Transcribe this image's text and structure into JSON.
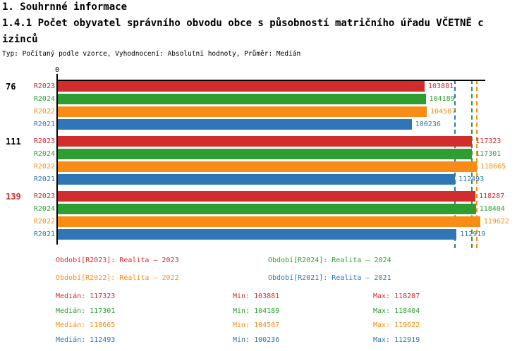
{
  "header": {
    "title": "1. Souhrnné informace",
    "subtitle_line1": "1.4.1 Počet obyvatel správního obvodu obce s působností matričního úřadu VČETNĚ c",
    "subtitle_line2": "izinců",
    "meta": "Typ: Počítaný podle vzorce, Vyhodnocení: Absolutní hodnoty, Průměr: Medián"
  },
  "chart_data": {
    "type": "bar",
    "orientation": "horizontal",
    "value_axis": {
      "origin_label": "0",
      "min": 0,
      "max": 121000,
      "grid": false
    },
    "groups": [
      {
        "label": "76",
        "label_color": "#000000"
      },
      {
        "label": "111",
        "label_color": "#000000"
      },
      {
        "label": "139",
        "label_color": "#d22d2d"
      }
    ],
    "series": [
      {
        "id": "R2023",
        "label": "R2023",
        "color": "#d22d2d",
        "legend": "Období[R2023]: Realita – 2023",
        "values": [
          103881,
          117323,
          118287
        ],
        "median": 117323,
        "min": 103881,
        "max": 118287
      },
      {
        "id": "R2024",
        "label": "R2024",
        "color": "#2f9e32",
        "legend": "Období[R2024]: Realita – 2024",
        "values": [
          104189,
          117301,
          118404
        ],
        "median": 117301,
        "min": 104189,
        "max": 118404
      },
      {
        "id": "R2022",
        "label": "R2022",
        "color": "#f88c15",
        "legend": "Období[R2022]: Realita – 2022",
        "values": [
          104507,
          118665,
          119622
        ],
        "median": 118665,
        "min": 104507,
        "max": 119622
      },
      {
        "id": "R2021",
        "label": "R2021",
        "color": "#2e76b5",
        "legend": "Období[R2021]: Realita – 2021",
        "values": [
          100236,
          112493,
          112919
        ],
        "median": 112493,
        "min": 100236,
        "max": 112919
      }
    ],
    "median_lines_shown": true
  },
  "stats": {
    "median_prefix": "Medián: ",
    "min_prefix": "Min: ",
    "max_prefix": "Max: "
  }
}
